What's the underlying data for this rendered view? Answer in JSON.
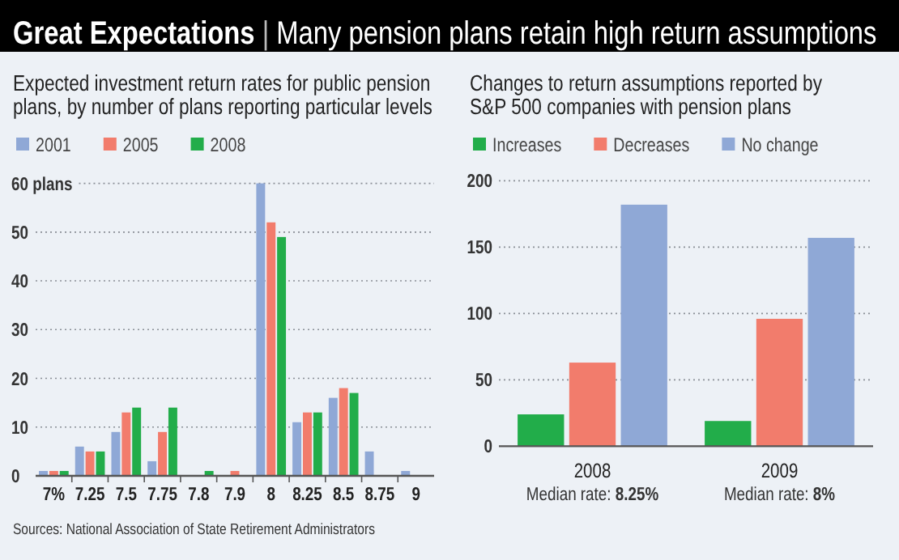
{
  "chart_data": [
    {
      "type": "bar",
      "title": "Great Expectations | Many pension plans retain high return assumptions",
      "subtitle": "Expected investment return rates for public pension plans, by number of plans reporting particular levels",
      "categories": [
        "7%",
        "7.25",
        "7.5",
        "7.75",
        "7.8",
        "7.9",
        "8",
        "8.25",
        "8.5",
        "8.75",
        "9"
      ],
      "series": [
        {
          "name": "2001",
          "color": "#8fa8d6",
          "values": [
            1,
            6,
            9,
            3,
            0,
            0,
            60,
            11,
            16,
            5,
            1
          ]
        },
        {
          "name": "2005",
          "color": "#f27c6c",
          "values": [
            1,
            5,
            13,
            9,
            0,
            1,
            52,
            13,
            18,
            0,
            0
          ]
        },
        {
          "name": "2008",
          "color": "#22ad4a",
          "values": [
            1,
            5,
            14,
            14,
            1,
            0,
            49,
            13,
            17,
            0,
            0
          ]
        }
      ],
      "ylim": [
        0,
        60
      ],
      "yticks": [
        0,
        10,
        20,
        30,
        40,
        50,
        {
          "value": 60,
          "label": "60 plans"
        }
      ],
      "grid": "y",
      "legend": "top",
      "annotations": [
        "Sources: National Association of State Retirement Administrators"
      ]
    },
    {
      "type": "bar",
      "subtitle": "Changes to return assumptions reported by S&P 500 companies with pension plans",
      "categories": [
        "2008",
        "2009"
      ],
      "series": [
        {
          "name": "Increases",
          "color": "#22ad4a",
          "values": [
            24,
            19
          ]
        },
        {
          "name": "Decreases",
          "color": "#f27c6c",
          "values": [
            63,
            96
          ]
        },
        {
          "name": "No change",
          "color": "#8fa8d6",
          "values": [
            182,
            157
          ]
        }
      ],
      "ylim": [
        0,
        200
      ],
      "yticks": [
        0,
        50,
        100,
        150,
        200
      ],
      "grid": "y",
      "legend": "top",
      "annotations": [
        "Median rate: 8.25%",
        "Median rate: 8%"
      ]
    }
  ]
}
